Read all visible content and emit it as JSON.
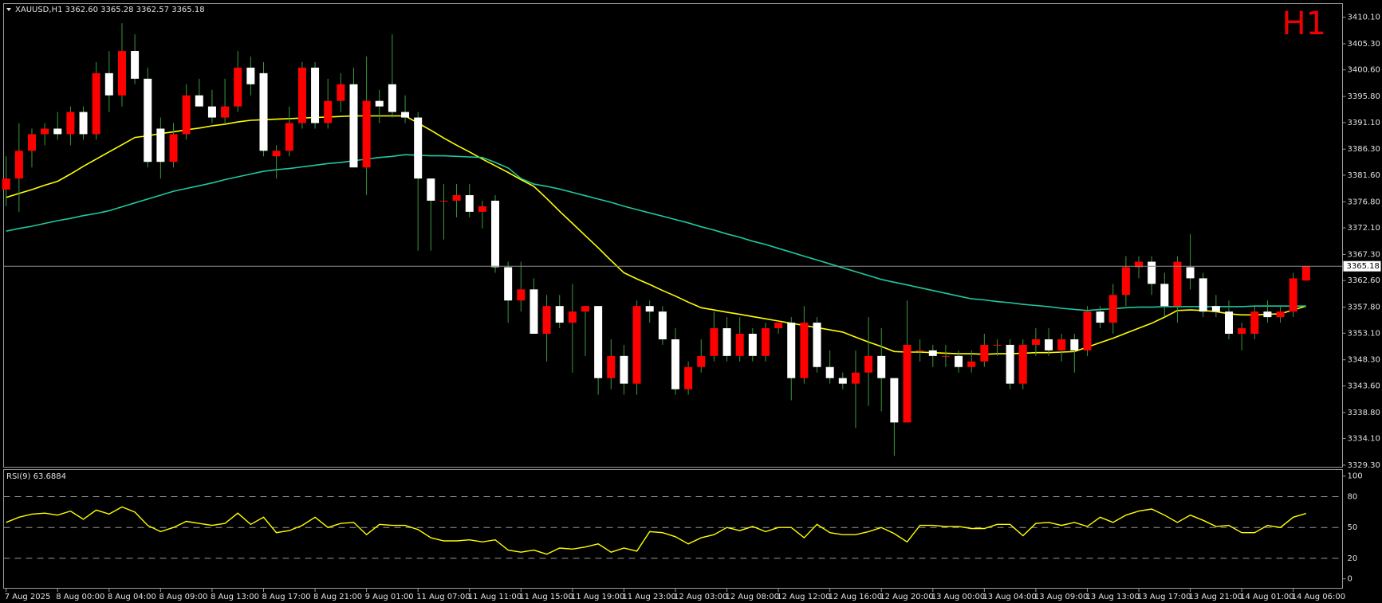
{
  "chart_data": {
    "type": "candlestick",
    "title": "XAUUSD,H1  3362.60 3365.28 3362.57 3365.18",
    "period_label": "H1",
    "categories": [
      "7 Aug 2025",
      null,
      null,
      null,
      "8 Aug 00:00",
      null,
      null,
      null,
      "8 Aug 04:00",
      null,
      null,
      null,
      "8 Aug 09:00",
      null,
      null,
      null,
      "8 Aug 13:00",
      null,
      null,
      null,
      "8 Aug 17:00",
      null,
      null,
      null,
      "8 Aug 21:00",
      null,
      null,
      null,
      "9 Aug 01:00",
      null,
      null,
      null,
      "11 Aug 07:00",
      null,
      null,
      null,
      "11 Aug 11:00",
      null,
      null,
      null,
      "11 Aug 15:00",
      null,
      null,
      null,
      "11 Aug 19:00",
      null,
      null,
      null,
      "11 Aug 23:00",
      null,
      null,
      null,
      "12 Aug 03:00",
      null,
      null,
      null,
      "12 Aug 08:00",
      null,
      null,
      null,
      "12 Aug 12:00",
      null,
      null,
      null,
      "12 Aug 16:00",
      null,
      null,
      null,
      "12 Aug 20:00",
      null,
      null,
      null,
      "13 Aug 00:00",
      null,
      null,
      null,
      "13 Aug 04:00",
      null,
      null,
      null,
      "13 Aug 09:00",
      null,
      null,
      null,
      "13 Aug 13:00",
      null,
      null,
      null,
      "13 Aug 17:00",
      null,
      null,
      null,
      "13 Aug 21:00",
      null,
      null,
      null,
      "14 Aug 01:00",
      null,
      null,
      null,
      "14 Aug 06:00",
      null
    ],
    "open": [
      3379,
      3381,
      3386,
      3389,
      3390,
      3389,
      3393,
      3389,
      3400,
      3396,
      3404,
      3399,
      3390,
      3384,
      3389,
      3396,
      3394,
      3392,
      3394,
      3401,
      3400,
      3385,
      3386,
      3391,
      3401,
      3391,
      3395,
      3398,
      3383,
      3395,
      3398,
      3393,
      3392,
      3381,
      3377,
      3377,
      3378,
      3375,
      3377,
      3365,
      3359,
      3361,
      3353,
      3358,
      3355,
      3357,
      3358,
      3345,
      3349,
      3344,
      3358,
      3357,
      3352,
      3343,
      3347,
      3349,
      3354,
      3349,
      3353,
      3349,
      3354,
      3355,
      3345,
      3355,
      3347,
      3345,
      3344,
      3346,
      3349,
      3345,
      3337,
      3350,
      3350,
      3349,
      3349,
      3347,
      3348,
      3351,
      3351,
      3344,
      3351,
      3352,
      3350,
      3352,
      3350,
      3357,
      3355,
      3360,
      3365,
      3366,
      3362,
      3358,
      3365,
      3363,
      3358,
      3357,
      3353,
      3353,
      3357,
      3356,
      3357,
      3362.6
    ],
    "high": [
      3385,
      3391,
      3390,
      3391,
      3393,
      3394,
      3394,
      3402,
      3404,
      3409,
      3407,
      3401,
      3392,
      3391,
      3398,
      3399,
      3397,
      3399,
      3404,
      3403,
      3402,
      3387,
      3394,
      3402,
      3402,
      3399,
      3400,
      3401,
      3403,
      3397,
      3407,
      3396,
      3393,
      3381,
      3380,
      3380,
      3380,
      3377,
      3378,
      3366,
      3366,
      3363,
      3360,
      3360,
      3362,
      3358,
      3358,
      3352,
      3351,
      3359,
      3359,
      3358,
      3354,
      3348,
      3352,
      3357,
      3356,
      3356,
      3354,
      3355,
      3355,
      3356,
      3358,
      3356,
      3350,
      3346,
      3350,
      3356,
      3354,
      3345,
      3359,
      3352,
      3351,
      3351,
      3350,
      3350,
      3353,
      3352,
      3352,
      3352,
      3354,
      3354,
      3353,
      3353,
      3358,
      3358,
      3362,
      3367,
      3367,
      3367,
      3364,
      3367,
      3371,
      3364,
      3360,
      3359,
      3355,
      3358,
      3359,
      3358,
      3364,
      3365.28
    ],
    "low": [
      3376,
      3375,
      3383,
      3387,
      3388,
      3387,
      3388,
      3388,
      3393,
      3394,
      3398,
      3383,
      3381,
      3383,
      3388,
      3394,
      3391,
      3391,
      3393,
      3396,
      3385,
      3381,
      3385,
      3390,
      3390,
      3390,
      3393,
      3383,
      3378,
      3391,
      3392,
      3391,
      3368,
      3368,
      3370,
      3374,
      3374,
      3372,
      3364,
      3355,
      3357,
      3353,
      3348,
      3354,
      3346,
      3349,
      3342,
      3343,
      3342,
      3342,
      3355,
      3351,
      3342,
      3342,
      3346,
      3348,
      3348,
      3348,
      3348,
      3348,
      3353,
      3341,
      3344,
      3346,
      3344,
      3343,
      3336,
      3340,
      3339,
      3331,
      3337,
      3348,
      3347,
      3347,
      3346,
      3346,
      3347,
      3349,
      3343,
      3343,
      3349,
      3349,
      3348,
      3346,
      3349,
      3354,
      3353,
      3358,
      3363,
      3360,
      3356,
      3355,
      3361,
      3356,
      3356,
      3352,
      3350,
      3352,
      3355,
      3355,
      3356,
      3362.57
    ],
    "close": [
      3381,
      3386,
      3389,
      3390,
      3389,
      3393,
      3389,
      3400,
      3396,
      3404,
      3399,
      3384,
      3384,
      3389,
      3396,
      3394,
      3392,
      3394,
      3401,
      3398,
      3386,
      3386,
      3391,
      3401,
      3391,
      3395,
      3398,
      3383,
      3395,
      3394,
      3393,
      3392,
      3381,
      3377,
      3377,
      3378,
      3375,
      3376,
      3365,
      3359,
      3361,
      3353,
      3358,
      3355,
      3357,
      3358,
      3345,
      3349,
      3344,
      3358,
      3357,
      3352,
      3343,
      3347,
      3349,
      3354,
      3349,
      3353,
      3349,
      3354,
      3355,
      3345,
      3355,
      3347,
      3345,
      3344,
      3346,
      3349,
      3345,
      3337,
      3351,
      3350,
      3349,
      3349,
      3347,
      3348,
      3351,
      3351,
      3344,
      3351,
      3352,
      3350,
      3352,
      3350,
      3357,
      3355,
      3360,
      3365,
      3366,
      3362,
      3358,
      3366,
      3363,
      3357,
      3357,
      3353,
      3354,
      3357,
      3356,
      3357,
      3363,
      3365.18
    ],
    "up_color": "#ff0000",
    "down_color": "#ffffff",
    "wick_color": "#3a9a3a",
    "ylim": [
      3329.15,
      3412.48
    ],
    "yticks": [
      {
        "value": 3410.1,
        "label": "3410.10"
      },
      {
        "value": 3405.3,
        "label": "3405.30"
      },
      {
        "value": 3400.6,
        "label": "3400.60"
      },
      {
        "value": 3395.8,
        "label": "3395.80"
      },
      {
        "value": 3391.1,
        "label": "3391.10"
      },
      {
        "value": 3386.3,
        "label": "3386.30"
      },
      {
        "value": 3381.6,
        "label": "3381.60"
      },
      {
        "value": 3376.8,
        "label": "3376.80"
      },
      {
        "value": 3372.1,
        "label": "3372.10"
      },
      {
        "value": 3367.3,
        "label": "3367.30"
      },
      {
        "value": 3362.6,
        "label": "3362.60"
      },
      {
        "value": 3357.8,
        "label": "3357.80"
      },
      {
        "value": 3353.1,
        "label": "3353.10"
      },
      {
        "value": 3348.3,
        "label": "3348.30"
      },
      {
        "value": 3343.6,
        "label": "3343.60"
      },
      {
        "value": 3338.8,
        "label": "3338.80"
      },
      {
        "value": 3334.1,
        "label": "3334.10"
      },
      {
        "value": 3329.3,
        "label": "3329.30"
      }
    ],
    "current_price": {
      "value": 3365.18,
      "label": "3365.18"
    },
    "overlays": [
      {
        "color": "#ffff00",
        "values": [
          3377.6,
          3378.3,
          3379.0,
          3379.8,
          3380.5,
          3381.8,
          3383.2,
          3384.5,
          3385.8,
          3387.1,
          3388.4,
          3388.7,
          3389.1,
          3389.4,
          3389.8,
          3390.1,
          3390.5,
          3390.8,
          3391.2,
          3391.5,
          3391.6,
          3391.7,
          3391.8,
          3391.9,
          3392.0,
          3392.1,
          3392.2,
          3392.3,
          3392.3,
          3392.3,
          3392.3,
          3392.3,
          3391.0,
          3389.7,
          3388.3,
          3387.0,
          3385.8,
          3384.5,
          3383.3,
          3382.1,
          3380.8,
          3379.6,
          3377.4,
          3375.1,
          3372.9,
          3370.7,
          3368.5,
          3366.2,
          3364.0,
          3362.9,
          3361.9,
          3360.8,
          3359.8,
          3358.7,
          3357.7,
          3357.3,
          3356.9,
          3356.5,
          3356.1,
          3355.7,
          3355.3,
          3354.9,
          3354.5,
          3354.1,
          3353.7,
          3353.3,
          3352.4,
          3351.5,
          3350.7,
          3349.8,
          3349.7,
          3349.7,
          3349.6,
          3349.5,
          3349.4,
          3349.4,
          3349.3,
          3349.4,
          3349.4,
          3349.5,
          3349.6,
          3349.6,
          3349.7,
          3349.8,
          3350.6,
          3351.4,
          3352.2,
          3353.1,
          3354.0,
          3354.9,
          3356.0,
          3357.2,
          3357.3,
          3357.2,
          3357.0,
          3356.6,
          3356.4,
          3356.4,
          3356.5,
          3356.6,
          3357.3,
          3358.0
        ]
      },
      {
        "color": "#20c8a0",
        "values": [
          3371.5,
          3372.0,
          3372.4,
          3372.9,
          3373.4,
          3373.8,
          3374.3,
          3374.7,
          3375.2,
          3375.9,
          3376.6,
          3377.3,
          3378.0,
          3378.7,
          3379.2,
          3379.7,
          3380.2,
          3380.8,
          3381.3,
          3381.8,
          3382.3,
          3382.6,
          3382.8,
          3383.1,
          3383.4,
          3383.7,
          3383.9,
          3384.2,
          3384.5,
          3384.8,
          3385.0,
          3385.3,
          3385.2,
          3385.1,
          3385.1,
          3385.0,
          3384.9,
          3384.8,
          3383.9,
          3382.9,
          3381.0,
          3380.0,
          3379.6,
          3379.1,
          3378.5,
          3377.9,
          3377.3,
          3376.7,
          3376.0,
          3375.4,
          3374.8,
          3374.2,
          3373.6,
          3373.0,
          3372.3,
          3371.7,
          3371.0,
          3370.4,
          3369.7,
          3369.1,
          3368.4,
          3367.7,
          3367.0,
          3366.3,
          3365.6,
          3364.9,
          3364.2,
          3363.5,
          3362.8,
          3362.3,
          3361.8,
          3361.3,
          3360.8,
          3360.3,
          3359.8,
          3359.3,
          3359.1,
          3358.8,
          3358.6,
          3358.3,
          3358.1,
          3357.9,
          3357.6,
          3357.4,
          3357.2,
          3357.4,
          3357.5,
          3357.7,
          3357.8,
          3357.8,
          3357.9,
          3357.9,
          3357.9,
          3357.9,
          3357.9,
          3357.9,
          3357.9,
          3358.0,
          3358.0,
          3358.0,
          3358.0,
          3358.0
        ]
      }
    ],
    "rsi": {
      "label": "RSI(9) 63.6884",
      "color": "#ffff00",
      "values": [
        55,
        60,
        63,
        64,
        62,
        66,
        58,
        67,
        63,
        70,
        65,
        52,
        46,
        50,
        56,
        54,
        52,
        54,
        64,
        53,
        60,
        45,
        47,
        52,
        60,
        50,
        54,
        55,
        43,
        53,
        52,
        52,
        48,
        40,
        37,
        37,
        38,
        36,
        38,
        28,
        26,
        28,
        24,
        30,
        29,
        31,
        34,
        26,
        30,
        27,
        46,
        45,
        41,
        34,
        40,
        43,
        50,
        47,
        51,
        46,
        50,
        50,
        40,
        53,
        45,
        43,
        43,
        46,
        50,
        44,
        36,
        52,
        52,
        51,
        51,
        49,
        49,
        53,
        53,
        42,
        54,
        55,
        52,
        55,
        51,
        60,
        55,
        62,
        66,
        68,
        62,
        55,
        62,
        57,
        51,
        52,
        45,
        45,
        52,
        50,
        60,
        63.6884
      ],
      "ylim": [
        -8,
        106
      ],
      "yticks": [
        100,
        80,
        50,
        20,
        0
      ]
    }
  }
}
